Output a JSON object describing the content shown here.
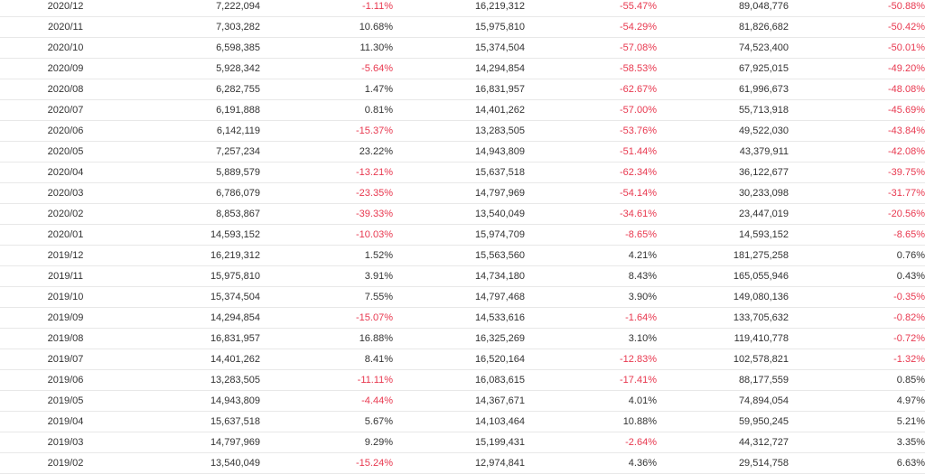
{
  "table": {
    "rows": [
      {
        "date": "2020/12",
        "v1": "7,222,094",
        "p1": "-1.11%",
        "v2": "16,219,312",
        "p2": "-55.47%",
        "v3": "89,048,776",
        "p3": "-50.88%"
      },
      {
        "date": "2020/11",
        "v1": "7,303,282",
        "p1": "10.68%",
        "v2": "15,975,810",
        "p2": "-54.29%",
        "v3": "81,826,682",
        "p3": "-50.42%"
      },
      {
        "date": "2020/10",
        "v1": "6,598,385",
        "p1": "11.30%",
        "v2": "15,374,504",
        "p2": "-57.08%",
        "v3": "74,523,400",
        "p3": "-50.01%"
      },
      {
        "date": "2020/09",
        "v1": "5,928,342",
        "p1": "-5.64%",
        "v2": "14,294,854",
        "p2": "-58.53%",
        "v3": "67,925,015",
        "p3": "-49.20%"
      },
      {
        "date": "2020/08",
        "v1": "6,282,755",
        "p1": "1.47%",
        "v2": "16,831,957",
        "p2": "-62.67%",
        "v3": "61,996,673",
        "p3": "-48.08%"
      },
      {
        "date": "2020/07",
        "v1": "6,191,888",
        "p1": "0.81%",
        "v2": "14,401,262",
        "p2": "-57.00%",
        "v3": "55,713,918",
        "p3": "-45.69%"
      },
      {
        "date": "2020/06",
        "v1": "6,142,119",
        "p1": "-15.37%",
        "v2": "13,283,505",
        "p2": "-53.76%",
        "v3": "49,522,030",
        "p3": "-43.84%"
      },
      {
        "date": "2020/05",
        "v1": "7,257,234",
        "p1": "23.22%",
        "v2": "14,943,809",
        "p2": "-51.44%",
        "v3": "43,379,911",
        "p3": "-42.08%"
      },
      {
        "date": "2020/04",
        "v1": "5,889,579",
        "p1": "-13.21%",
        "v2": "15,637,518",
        "p2": "-62.34%",
        "v3": "36,122,677",
        "p3": "-39.75%"
      },
      {
        "date": "2020/03",
        "v1": "6,786,079",
        "p1": "-23.35%",
        "v2": "14,797,969",
        "p2": "-54.14%",
        "v3": "30,233,098",
        "p3": "-31.77%"
      },
      {
        "date": "2020/02",
        "v1": "8,853,867",
        "p1": "-39.33%",
        "v2": "13,540,049",
        "p2": "-34.61%",
        "v3": "23,447,019",
        "p3": "-20.56%"
      },
      {
        "date": "2020/01",
        "v1": "14,593,152",
        "p1": "-10.03%",
        "v2": "15,974,709",
        "p2": "-8.65%",
        "v3": "14,593,152",
        "p3": "-8.65%"
      },
      {
        "date": "2019/12",
        "v1": "16,219,312",
        "p1": "1.52%",
        "v2": "15,563,560",
        "p2": "4.21%",
        "v3": "181,275,258",
        "p3": "0.76%"
      },
      {
        "date": "2019/11",
        "v1": "15,975,810",
        "p1": "3.91%",
        "v2": "14,734,180",
        "p2": "8.43%",
        "v3": "165,055,946",
        "p3": "0.43%"
      },
      {
        "date": "2019/10",
        "v1": "15,374,504",
        "p1": "7.55%",
        "v2": "14,797,468",
        "p2": "3.90%",
        "v3": "149,080,136",
        "p3": "-0.35%"
      },
      {
        "date": "2019/09",
        "v1": "14,294,854",
        "p1": "-15.07%",
        "v2": "14,533,616",
        "p2": "-1.64%",
        "v3": "133,705,632",
        "p3": "-0.82%"
      },
      {
        "date": "2019/08",
        "v1": "16,831,957",
        "p1": "16.88%",
        "v2": "16,325,269",
        "p2": "3.10%",
        "v3": "119,410,778",
        "p3": "-0.72%"
      },
      {
        "date": "2019/07",
        "v1": "14,401,262",
        "p1": "8.41%",
        "v2": "16,520,164",
        "p2": "-12.83%",
        "v3": "102,578,821",
        "p3": "-1.32%"
      },
      {
        "date": "2019/06",
        "v1": "13,283,505",
        "p1": "-11.11%",
        "v2": "16,083,615",
        "p2": "-17.41%",
        "v3": "88,177,559",
        "p3": "0.85%"
      },
      {
        "date": "2019/05",
        "v1": "14,943,809",
        "p1": "-4.44%",
        "v2": "14,367,671",
        "p2": "4.01%",
        "v3": "74,894,054",
        "p3": "4.97%"
      },
      {
        "date": "2019/04",
        "v1": "15,637,518",
        "p1": "5.67%",
        "v2": "14,103,464",
        "p2": "10.88%",
        "v3": "59,950,245",
        "p3": "5.21%"
      },
      {
        "date": "2019/03",
        "v1": "14,797,969",
        "p1": "9.29%",
        "v2": "15,199,431",
        "p2": "-2.64%",
        "v3": "44,312,727",
        "p3": "3.35%"
      },
      {
        "date": "2019/02",
        "v1": "13,540,049",
        "p1": "-15.24%",
        "v2": "12,974,841",
        "p2": "4.36%",
        "v3": "29,514,758",
        "p3": "6.63%"
      }
    ],
    "negative_color": "#e8384f",
    "text_color": "#333333"
  }
}
